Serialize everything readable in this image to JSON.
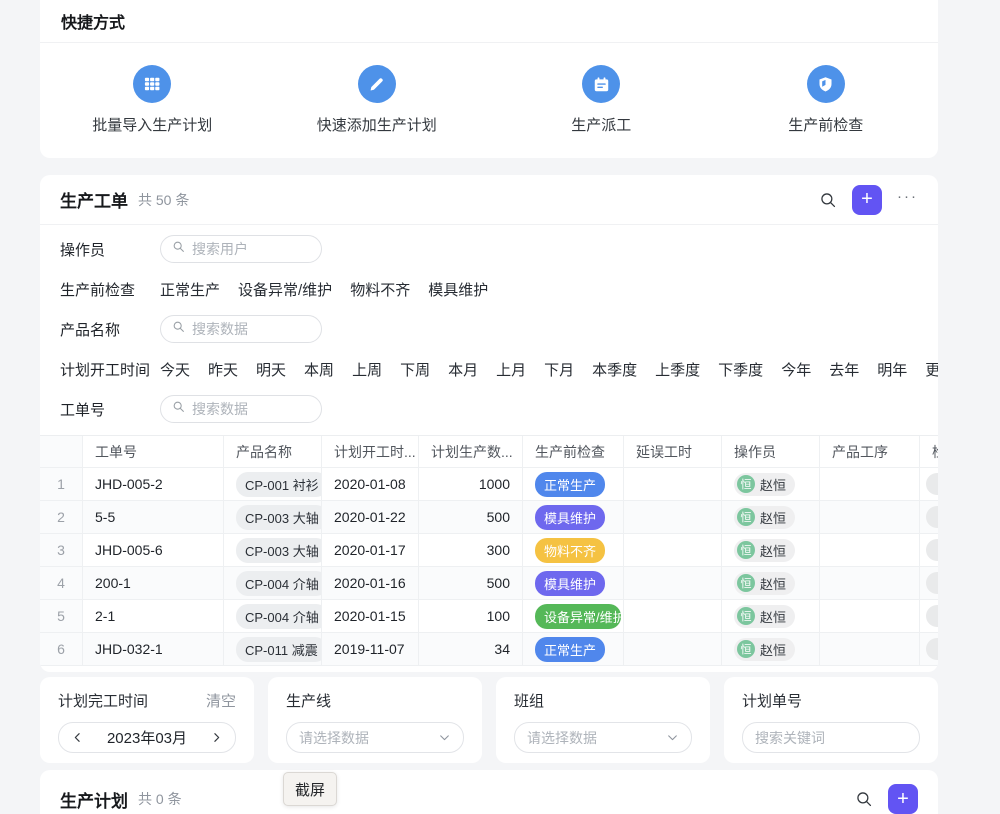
{
  "colors": {
    "icon_blue": "#4e92e9",
    "accent_purple": "#6254f3",
    "avatar_green": "#7cc69e",
    "status_normal_blue": "#5087ec",
    "status_mold_purple": "#6e68ee",
    "status_material_yellow": "#f5c242",
    "status_equipment_green": "#55b858"
  },
  "shortcuts": {
    "title": "快捷方式",
    "items": [
      {
        "label": "批量导入生产计划",
        "icon": "grid-icon"
      },
      {
        "label": "快速添加生产计划",
        "icon": "pencil-icon"
      },
      {
        "label": "生产派工",
        "icon": "calendar-icon"
      },
      {
        "label": "生产前检查",
        "icon": "shield-icon"
      }
    ]
  },
  "work_orders": {
    "title": "生产工单",
    "count_text": "共 50 条",
    "filters": [
      {
        "label": "操作员",
        "type": "search",
        "placeholder": "搜索用户"
      },
      {
        "label": "生产前检查",
        "type": "options",
        "options": [
          "正常生产",
          "设备异常/维护",
          "物料不齐",
          "模具维护"
        ]
      },
      {
        "label": "产品名称",
        "type": "search",
        "placeholder": "搜索数据"
      },
      {
        "label": "计划开工时间",
        "type": "options",
        "options": [
          "今天",
          "昨天",
          "明天",
          "本周",
          "上周",
          "下周",
          "本月",
          "上月",
          "下月",
          "本季度",
          "上季度",
          "下季度",
          "今年",
          "去年",
          "明年"
        ],
        "more_label": "更多"
      },
      {
        "label": "工单号",
        "type": "search",
        "placeholder": "搜索数据"
      }
    ],
    "table": {
      "columns": [
        "",
        "工单号",
        "产品名称",
        "计划开工时...",
        "计划生产数...",
        "生产前检查",
        "延误工时",
        "操作员",
        "产品工序",
        "检"
      ],
      "rows": [
        {
          "index": "1",
          "order_no": "JHD-005-2",
          "product": "CP-001 衬衫",
          "start_date": "2020-01-08",
          "qty": "1000",
          "status": {
            "label": "正常生产",
            "color": "#5087ec"
          },
          "delay": "",
          "operator": {
            "name": "赵恒",
            "avatar_char": "恒"
          }
        },
        {
          "index": "2",
          "order_no": "5-5",
          "product": "CP-003 大轴",
          "start_date": "2020-01-22",
          "qty": "500",
          "status": {
            "label": "模具维护",
            "color": "#6e68ee"
          },
          "delay": "",
          "operator": {
            "name": "赵恒",
            "avatar_char": "恒"
          }
        },
        {
          "index": "3",
          "order_no": "JHD-005-6",
          "product": "CP-003 大轴",
          "start_date": "2020-01-17",
          "qty": "300",
          "status": {
            "label": "物料不齐",
            "color": "#f5c242"
          },
          "delay": "",
          "operator": {
            "name": "赵恒",
            "avatar_char": "恒"
          }
        },
        {
          "index": "4",
          "order_no": "200-1",
          "product": "CP-004 介轴",
          "start_date": "2020-01-16",
          "qty": "500",
          "status": {
            "label": "模具维护",
            "color": "#6e68ee"
          },
          "delay": "",
          "operator": {
            "name": "赵恒",
            "avatar_char": "恒"
          }
        },
        {
          "index": "5",
          "order_no": "2-1",
          "product": "CP-004 介轴",
          "start_date": "2020-01-15",
          "qty": "100",
          "status": {
            "label": "设备异常/维护",
            "color": "#55b858"
          },
          "delay": "",
          "operator": {
            "name": "赵恒",
            "avatar_char": "恒"
          }
        },
        {
          "index": "6",
          "order_no": "JHD-032-1",
          "product": "CP-011 减震",
          "start_date": "2019-11-07",
          "qty": "34",
          "status": {
            "label": "正常生产",
            "color": "#5087ec"
          },
          "delay": "",
          "operator": {
            "name": "赵恒",
            "avatar_char": "恒"
          }
        }
      ]
    }
  },
  "bottom_filters": {
    "cards": [
      {
        "label": "计划完工时间",
        "clear_label": "清空",
        "type": "month",
        "value": "2023年03月"
      },
      {
        "label": "生产线",
        "type": "select",
        "placeholder": "请选择数据"
      },
      {
        "label": "班组",
        "type": "select",
        "placeholder": "请选择数据"
      },
      {
        "label": "计划单号",
        "type": "input",
        "placeholder": "搜索关键词"
      }
    ]
  },
  "production_plan": {
    "title": "生产计划",
    "count_text": "共 0 条"
  },
  "screenshot_button": {
    "label": "截屏"
  }
}
